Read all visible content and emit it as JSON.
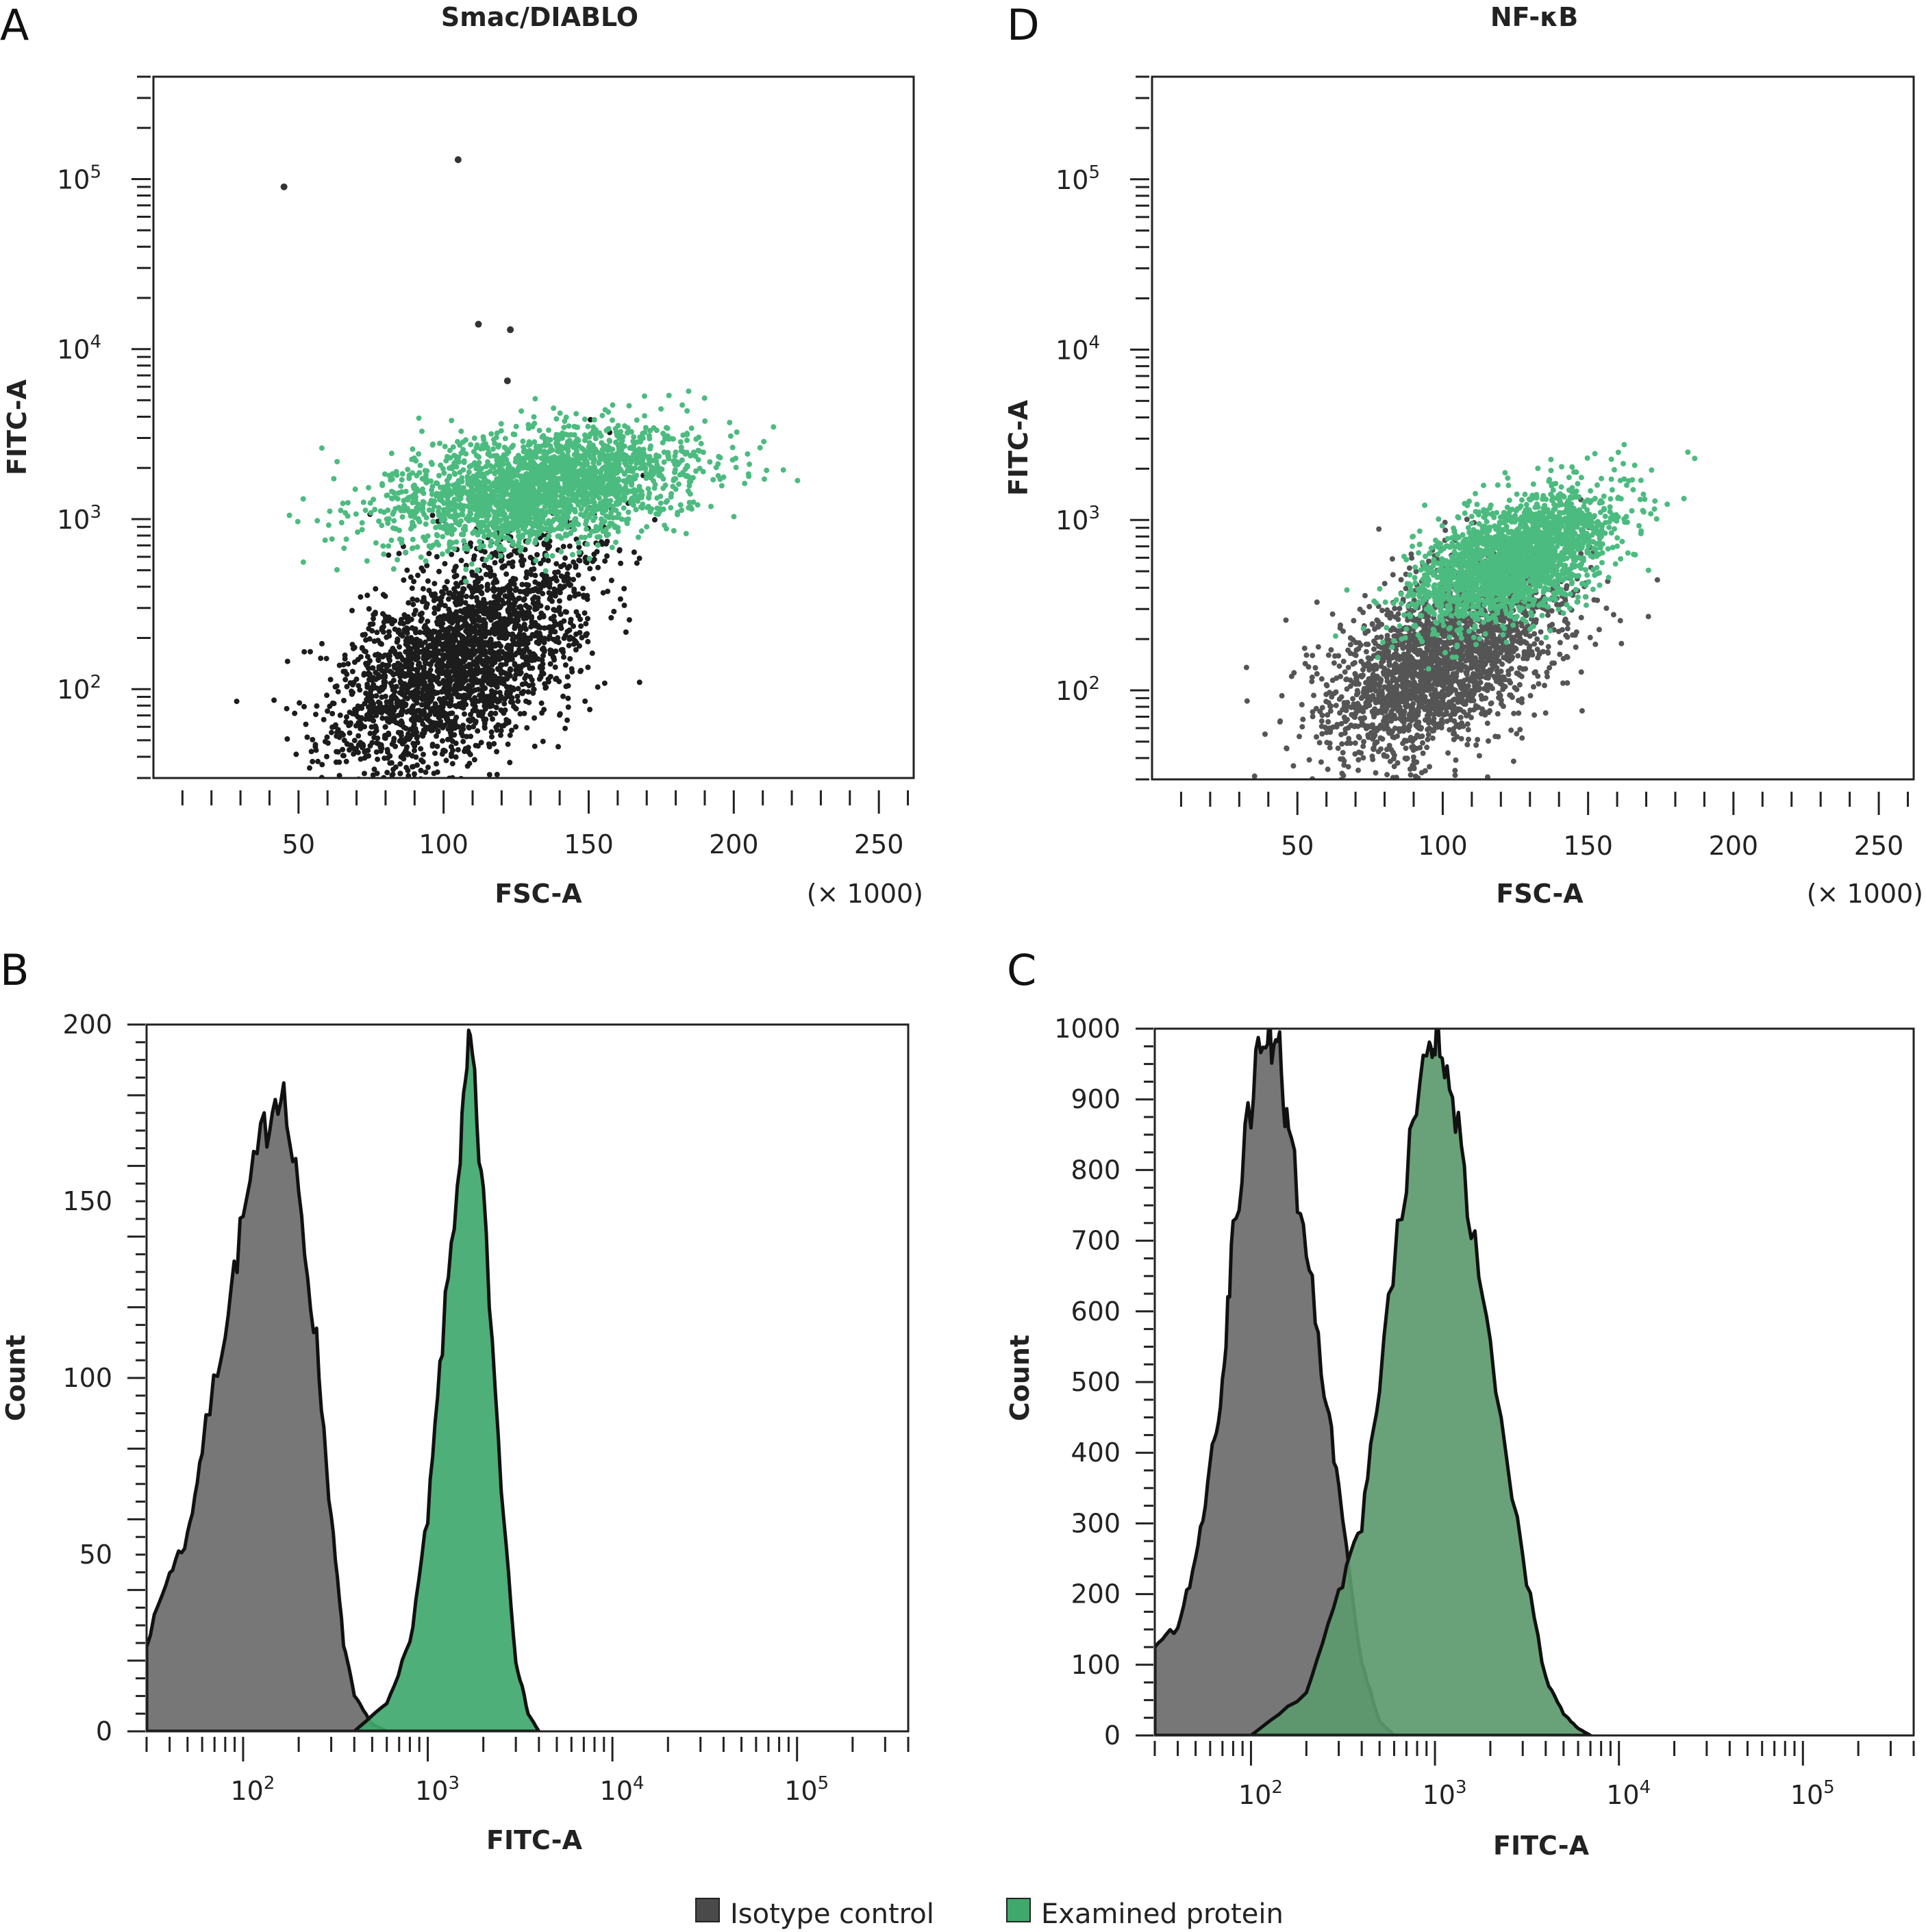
{
  "legend": {
    "items": [
      {
        "label": "Isotype control",
        "color": "#4a4a4a"
      },
      {
        "label": "Examined protein",
        "color": "#3fa86c"
      }
    ]
  },
  "chart_data": [
    {
      "panel": "A",
      "type": "scatter",
      "title": "Smac/DIABLO",
      "xlabel": "FSC-A",
      "xunit": "(× 1000)",
      "ylabel": "FITC-A",
      "xlim": [
        0,
        262
      ],
      "ylim": [
        30,
        400000
      ],
      "yscale": "log",
      "xticks": [
        "50",
        "100",
        "150",
        "200",
        "250"
      ],
      "yticks": [
        {
          "base": "10",
          "exp": "2"
        },
        {
          "base": "10",
          "exp": "3"
        },
        {
          "base": "10",
          "exp": "4"
        },
        {
          "base": "10",
          "exp": "5"
        }
      ],
      "series": [
        {
          "name": "Isotype control",
          "color": "#1c1c1c",
          "cx": 105,
          "cy": 150,
          "sx": 22,
          "sy": 0.35,
          "corr": 0.55,
          "n": 2600
        },
        {
          "name": "Examined protein",
          "color": "#4cbb7f",
          "cx": 135,
          "cy": 1550,
          "sx": 26,
          "sy": 0.17,
          "corr": 0.35,
          "n": 2400
        }
      ],
      "outliers": [
        [
          45,
          90000
        ],
        [
          105,
          130000
        ],
        [
          112,
          14000
        ],
        [
          123,
          13000
        ],
        [
          122,
          6500
        ]
      ]
    },
    {
      "panel": "D",
      "type": "scatter",
      "title": "NF-κB",
      "xlabel": "FSC-A",
      "xunit": "(× 1000)",
      "ylabel": "FITC-A",
      "xlim": [
        0,
        262
      ],
      "ylim": [
        30,
        400000
      ],
      "yscale": "log",
      "xticks": [
        "50",
        "100",
        "150",
        "200",
        "250"
      ],
      "yticks": [
        {
          "base": "10",
          "exp": "2"
        },
        {
          "base": "10",
          "exp": "3"
        },
        {
          "base": "10",
          "exp": "4"
        },
        {
          "base": "10",
          "exp": "5"
        }
      ],
      "series": [
        {
          "name": "Isotype control",
          "color": "#555555",
          "cx": 100,
          "cy": 150,
          "sx": 20,
          "sy": 0.3,
          "corr": 0.5,
          "n": 2400
        },
        {
          "name": "Examined protein",
          "color": "#4cbb7f",
          "cx": 125,
          "cy": 600,
          "sx": 17,
          "sy": 0.2,
          "corr": 0.55,
          "n": 2200
        }
      ]
    },
    {
      "panel": "B",
      "type": "area",
      "title": "",
      "xlabel": "FITC-A",
      "ylabel": "Count",
      "xscale": "log",
      "xlim": [
        30,
        400000
      ],
      "ylim": [
        0,
        200
      ],
      "yticks": [
        "0",
        "50",
        "100",
        "150",
        "200"
      ],
      "xticks": [
        {
          "base": "10",
          "exp": "2"
        },
        {
          "base": "10",
          "exp": "3"
        },
        {
          "base": "10",
          "exp": "4"
        },
        {
          "base": "10",
          "exp": "5"
        }
      ],
      "series": [
        {
          "name": "Isotype control",
          "color": "#6b6b6b",
          "x": [
            30,
            40,
            50,
            60,
            80,
            100,
            130,
            160,
            200,
            250,
            300,
            350,
            400,
            500,
            600
          ],
          "y": [
            25,
            45,
            55,
            80,
            115,
            145,
            170,
            185,
            150,
            110,
            60,
            25,
            10,
            2,
            0
          ]
        },
        {
          "name": "Examined protein",
          "color": "#3fa86c",
          "x": [
            400,
            600,
            800,
            1000,
            1200,
            1500,
            1700,
            2000,
            2500,
            3000,
            3500,
            4000
          ],
          "y": [
            0,
            8,
            25,
            60,
            110,
            165,
            195,
            150,
            70,
            20,
            5,
            0
          ]
        }
      ]
    },
    {
      "panel": "C",
      "type": "area",
      "title": "",
      "xlabel": "FITC-A",
      "ylabel": "Count",
      "xscale": "log",
      "xlim": [
        30,
        400000
      ],
      "ylim": [
        0,
        1000
      ],
      "yticks": [
        "0",
        "100",
        "200",
        "300",
        "400",
        "500",
        "600",
        "700",
        "800",
        "900",
        "1000"
      ],
      "xticks": [
        {
          "base": "10",
          "exp": "2"
        },
        {
          "base": "10",
          "exp": "3"
        },
        {
          "base": "10",
          "exp": "4"
        },
        {
          "base": "10",
          "exp": "5"
        }
      ],
      "series": [
        {
          "name": "Isotype control",
          "color": "#6b6b6b",
          "x": [
            30,
            40,
            50,
            60,
            70,
            80,
            100,
            120,
            140,
            160,
            200,
            250,
            300,
            400,
            500,
            600
          ],
          "y": [
            130,
            150,
            250,
            380,
            500,
            700,
            900,
            1000,
            980,
            850,
            700,
            500,
            350,
            100,
            20,
            0
          ]
        },
        {
          "name": "Examined protein",
          "color": "#5c9a6e",
          "x": [
            100,
            200,
            300,
            400,
            500,
            700,
            900,
            1000,
            1200,
            1500,
            2000,
            3000,
            4000,
            5000,
            6000,
            7000
          ],
          "y": [
            0,
            60,
            200,
            300,
            500,
            800,
            960,
            1000,
            950,
            750,
            550,
            250,
            80,
            30,
            10,
            0
          ]
        }
      ]
    }
  ]
}
